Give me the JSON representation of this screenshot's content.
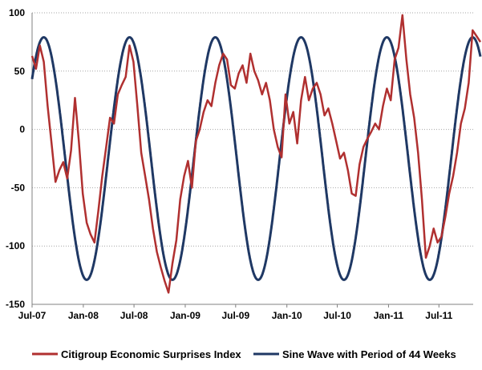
{
  "chart_data": {
    "type": "line",
    "title": "",
    "xlabel": "",
    "ylabel": "",
    "x_range": [
      "Jul-07",
      "Nov-11"
    ],
    "x_ticks": [
      "Jul-07",
      "Jan-08",
      "Jul-08",
      "Jan-09",
      "Jul-09",
      "Jan-10",
      "Jul-10",
      "Jan-11",
      "Jul-11"
    ],
    "ylim": [
      -150,
      100
    ],
    "y_ticks": [
      100,
      50,
      0,
      -50,
      -100,
      -150
    ],
    "grid": "horizontal dotted",
    "legend_position": "bottom",
    "series": [
      {
        "name": "Citigroup Economic Surprises Index",
        "color": "#b03030",
        "points": [
          [
            "2007-07-01",
            63
          ],
          [
            "2007-07-15",
            52
          ],
          [
            "2007-07-29",
            72
          ],
          [
            "2007-08-12",
            58
          ],
          [
            "2007-08-26",
            20
          ],
          [
            "2007-09-09",
            -12
          ],
          [
            "2007-09-23",
            -45
          ],
          [
            "2007-10-07",
            -35
          ],
          [
            "2007-10-21",
            -28
          ],
          [
            "2007-11-04",
            -42
          ],
          [
            "2007-11-18",
            -18
          ],
          [
            "2007-12-02",
            27
          ],
          [
            "2007-12-16",
            -10
          ],
          [
            "2007-12-30",
            -55
          ],
          [
            "2008-01-13",
            -80
          ],
          [
            "2008-01-27",
            -90
          ],
          [
            "2008-02-10",
            -97
          ],
          [
            "2008-02-24",
            -70
          ],
          [
            "2008-03-09",
            -40
          ],
          [
            "2008-03-23",
            -15
          ],
          [
            "2008-04-06",
            10
          ],
          [
            "2008-04-20",
            5
          ],
          [
            "2008-05-04",
            30
          ],
          [
            "2008-05-18",
            38
          ],
          [
            "2008-06-01",
            45
          ],
          [
            "2008-06-15",
            72
          ],
          [
            "2008-06-29",
            58
          ],
          [
            "2008-07-13",
            20
          ],
          [
            "2008-07-27",
            -20
          ],
          [
            "2008-08-10",
            -40
          ],
          [
            "2008-08-24",
            -60
          ],
          [
            "2008-09-07",
            -85
          ],
          [
            "2008-09-21",
            -105
          ],
          [
            "2008-10-05",
            -118
          ],
          [
            "2008-10-19",
            -130
          ],
          [
            "2008-11-02",
            -140
          ],
          [
            "2008-11-16",
            -115
          ],
          [
            "2008-11-30",
            -95
          ],
          [
            "2008-12-14",
            -60
          ],
          [
            "2008-12-28",
            -40
          ],
          [
            "2009-01-11",
            -27
          ],
          [
            "2009-01-25",
            -50
          ],
          [
            "2009-02-08",
            -10
          ],
          [
            "2009-02-22",
            0
          ],
          [
            "2009-03-08",
            15
          ],
          [
            "2009-03-22",
            25
          ],
          [
            "2009-04-05",
            20
          ],
          [
            "2009-04-19",
            40
          ],
          [
            "2009-05-03",
            55
          ],
          [
            "2009-05-17",
            65
          ],
          [
            "2009-05-31",
            60
          ],
          [
            "2009-06-14",
            38
          ],
          [
            "2009-06-28",
            35
          ],
          [
            "2009-07-12",
            48
          ],
          [
            "2009-07-26",
            55
          ],
          [
            "2009-08-09",
            40
          ],
          [
            "2009-08-23",
            65
          ],
          [
            "2009-09-06",
            50
          ],
          [
            "2009-09-20",
            42
          ],
          [
            "2009-10-04",
            30
          ],
          [
            "2009-10-18",
            40
          ],
          [
            "2009-11-01",
            25
          ],
          [
            "2009-11-15",
            0
          ],
          [
            "2009-11-29",
            -15
          ],
          [
            "2009-12-13",
            -24
          ],
          [
            "2009-12-27",
            30
          ],
          [
            "2010-01-10",
            5
          ],
          [
            "2010-01-24",
            15
          ],
          [
            "2010-02-07",
            -12
          ],
          [
            "2010-02-21",
            25
          ],
          [
            "2010-03-07",
            45
          ],
          [
            "2010-03-21",
            25
          ],
          [
            "2010-04-04",
            35
          ],
          [
            "2010-04-18",
            40
          ],
          [
            "2010-05-02",
            30
          ],
          [
            "2010-05-16",
            12
          ],
          [
            "2010-05-30",
            18
          ],
          [
            "2010-06-13",
            5
          ],
          [
            "2010-06-27",
            -10
          ],
          [
            "2010-07-11",
            -25
          ],
          [
            "2010-07-25",
            -20
          ],
          [
            "2010-08-08",
            -35
          ],
          [
            "2010-08-22",
            -55
          ],
          [
            "2010-09-05",
            -57
          ],
          [
            "2010-09-19",
            -30
          ],
          [
            "2010-10-03",
            -15
          ],
          [
            "2010-10-17",
            -8
          ],
          [
            "2010-10-31",
            -2
          ],
          [
            "2010-11-14",
            5
          ],
          [
            "2010-11-28",
            0
          ],
          [
            "2010-12-12",
            20
          ],
          [
            "2010-12-26",
            35
          ],
          [
            "2011-01-09",
            25
          ],
          [
            "2011-01-23",
            60
          ],
          [
            "2011-02-06",
            70
          ],
          [
            "2011-02-20",
            98
          ],
          [
            "2011-03-06",
            60
          ],
          [
            "2011-03-20",
            30
          ],
          [
            "2011-04-03",
            10
          ],
          [
            "2011-04-17",
            -20
          ],
          [
            "2011-05-01",
            -60
          ],
          [
            "2011-05-15",
            -110
          ],
          [
            "2011-05-29",
            -100
          ],
          [
            "2011-06-12",
            -85
          ],
          [
            "2011-06-26",
            -97
          ],
          [
            "2011-07-10",
            -92
          ],
          [
            "2011-07-24",
            -75
          ],
          [
            "2011-08-07",
            -55
          ],
          [
            "2011-08-21",
            -40
          ],
          [
            "2011-09-04",
            -20
          ],
          [
            "2011-09-18",
            5
          ],
          [
            "2011-10-02",
            18
          ],
          [
            "2011-10-16",
            40
          ],
          [
            "2011-10-30",
            85
          ],
          [
            "2011-11-13",
            80
          ],
          [
            "2011-11-27",
            75
          ]
        ]
      },
      {
        "name": "Sine Wave with Period of 44 Weeks",
        "color": "#1f3864",
        "function": "sine",
        "start": "2007-07-01",
        "end": "2011-11-27",
        "period_weeks": 44,
        "amplitude": 104,
        "center": -25,
        "peak_date": "2007-08-12"
      }
    ]
  }
}
